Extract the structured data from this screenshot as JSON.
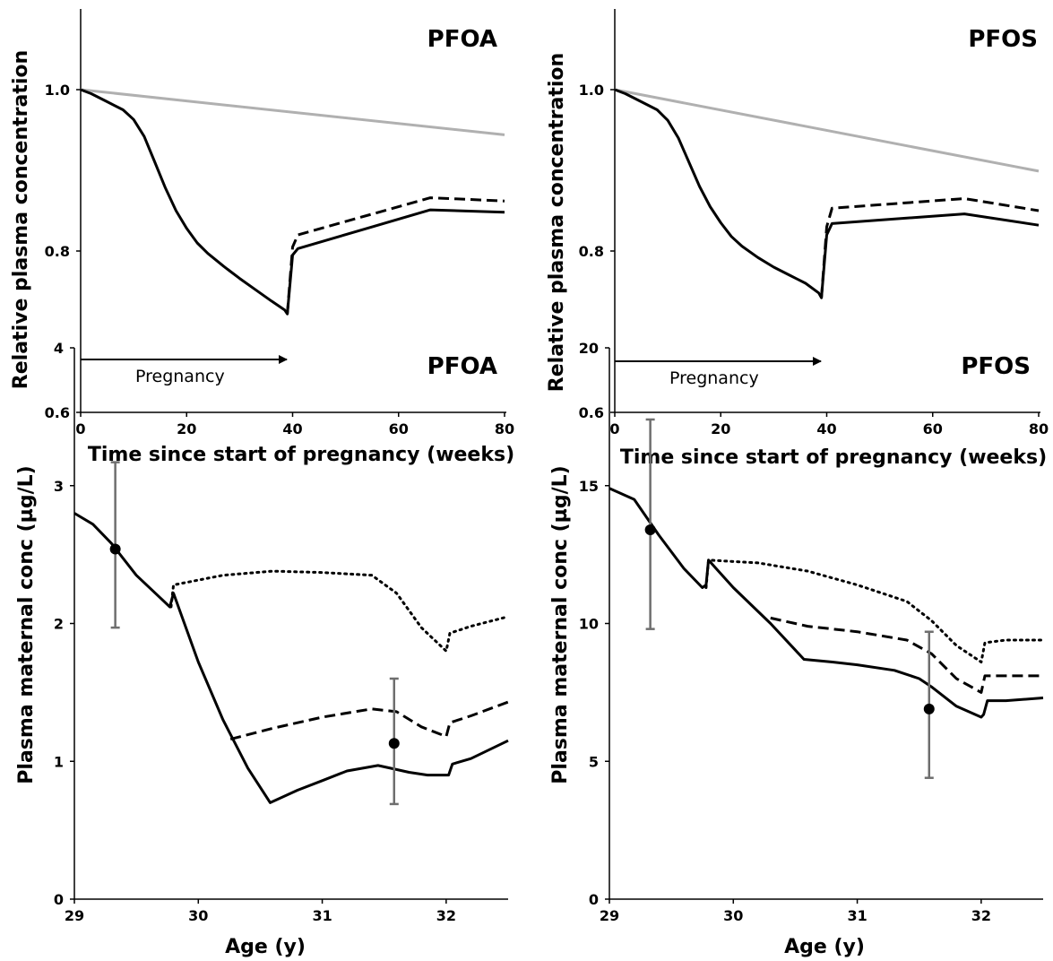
{
  "chart_data": [
    {
      "type": "line",
      "title": "PFOA",
      "xlabel": "Time since start of pregnancy (weeks)",
      "ylabel": "Relative plasma concentration",
      "xlim": [
        0,
        80
      ],
      "ylim": [
        0.6,
        1.1
      ],
      "xticks": [
        "0",
        "20",
        "40",
        "60",
        "80"
      ],
      "yticks": [
        "0.6",
        "0.8",
        "1.0"
      ],
      "annotation": "Pregnancy",
      "annotation_arrow": {
        "from": 0,
        "to": 39
      },
      "grid": false,
      "series": [
        {
          "style": "solid",
          "color": "#b0b0b0",
          "x": [
            0,
            80
          ],
          "y": [
            1.0,
            0.944
          ]
        },
        {
          "style": "dashed",
          "color": "#000000",
          "x": [
            39,
            40,
            41,
            66,
            80
          ],
          "y": [
            0.722,
            0.805,
            0.82,
            0.866,
            0.862
          ]
        },
        {
          "style": "solid",
          "color": "#000000",
          "x": [
            0,
            2,
            5,
            8,
            10,
            12,
            14,
            16,
            18,
            20,
            22,
            24,
            27,
            30,
            33,
            36,
            38.5,
            39,
            40,
            41,
            66,
            80
          ],
          "y": [
            1.0,
            0.995,
            0.985,
            0.975,
            0.963,
            0.942,
            0.91,
            0.878,
            0.85,
            0.828,
            0.81,
            0.797,
            0.781,
            0.766,
            0.752,
            0.738,
            0.727,
            0.722,
            0.795,
            0.803,
            0.851,
            0.848
          ]
        }
      ]
    },
    {
      "type": "line",
      "title": "PFOS",
      "xlabel": "Time since start of pregnancy (weeks)",
      "ylabel": "Relative plasma concentration",
      "xlim": [
        0,
        80
      ],
      "ylim": [
        0.6,
        1.1
      ],
      "xticks": [
        "0",
        "20",
        "40",
        "60",
        "80"
      ],
      "yticks": [
        "0.6",
        "0.8",
        "1.0"
      ],
      "annotation": "Pregnancy",
      "annotation_arrow": {
        "from": 0,
        "to": 39
      },
      "grid": false,
      "series": [
        {
          "style": "solid",
          "color": "#b0b0b0",
          "x": [
            0,
            80
          ],
          "y": [
            1.0,
            0.899
          ]
        },
        {
          "style": "dashed",
          "color": "#000000",
          "x": [
            39,
            40,
            41,
            66,
            80
          ],
          "y": [
            0.742,
            0.83,
            0.853,
            0.865,
            0.85
          ]
        },
        {
          "style": "solid",
          "color": "#000000",
          "x": [
            0,
            2,
            5,
            8,
            10,
            12,
            14,
            16,
            18,
            20,
            22,
            24,
            27,
            30,
            33,
            36,
            38.5,
            39,
            40,
            41,
            66,
            80
          ],
          "y": [
            1.0,
            0.995,
            0.985,
            0.975,
            0.962,
            0.94,
            0.91,
            0.88,
            0.855,
            0.835,
            0.818,
            0.806,
            0.792,
            0.78,
            0.77,
            0.76,
            0.748,
            0.742,
            0.82,
            0.834,
            0.846,
            0.832
          ]
        }
      ]
    },
    {
      "type": "line",
      "title": "PFOA",
      "xlabel": "Age (y)",
      "ylabel": "Plasma maternal conc (µg/L)",
      "xlim": [
        29,
        32.5
      ],
      "ylim": [
        0,
        4
      ],
      "xticks": [
        "29",
        "30",
        "31",
        "32"
      ],
      "yticks": [
        "0",
        "1",
        "2",
        "3",
        "4"
      ],
      "grid": false,
      "series": [
        {
          "style": "dotted",
          "color": "#000000",
          "x": [
            29.78,
            29.8,
            30.2,
            30.6,
            31.0,
            31.4,
            31.6,
            31.8,
            32.0,
            32.03,
            32.2,
            32.5
          ],
          "y": [
            2.12,
            2.28,
            2.35,
            2.38,
            2.37,
            2.35,
            2.22,
            1.97,
            1.8,
            1.93,
            1.98,
            2.05
          ]
        },
        {
          "style": "dashed",
          "color": "#000000",
          "x": [
            30.26,
            30.6,
            31.0,
            31.4,
            31.6,
            31.8,
            32.0,
            32.03,
            32.2,
            32.5
          ],
          "y": [
            1.16,
            1.24,
            1.32,
            1.38,
            1.36,
            1.25,
            1.18,
            1.28,
            1.33,
            1.43
          ]
        },
        {
          "style": "solid",
          "color": "#000000",
          "x": [
            29.0,
            29.15,
            29.3,
            29.5,
            29.7,
            29.77,
            29.8,
            30.0,
            30.2,
            30.4,
            30.58,
            30.8,
            31.0,
            31.2,
            31.45,
            31.55,
            31.7,
            31.85,
            32.02,
            32.05,
            32.2,
            32.5
          ],
          "y": [
            2.8,
            2.72,
            2.58,
            2.35,
            2.18,
            2.12,
            2.22,
            1.72,
            1.3,
            0.95,
            0.7,
            0.79,
            0.86,
            0.93,
            0.97,
            0.95,
            0.92,
            0.9,
            0.9,
            0.98,
            1.02,
            1.15
          ]
        },
        {
          "kind": "points_with_error",
          "x": [
            29.33,
            31.58
          ],
          "y": [
            2.54,
            1.13
          ],
          "yerr_low": [
            1.97,
            0.69
          ],
          "yerr_high": [
            3.17,
            1.6
          ]
        }
      ]
    },
    {
      "type": "line",
      "title": "PFOS",
      "xlabel": "Age (y)",
      "ylabel": "Plasma maternal conc (µg/L)",
      "xlim": [
        29,
        32.5
      ],
      "ylim": [
        0,
        20
      ],
      "xticks": [
        "29",
        "30",
        "31",
        "32"
      ],
      "yticks": [
        "0",
        "5",
        "10",
        "15",
        "20"
      ],
      "grid": false,
      "series": [
        {
          "style": "dotted",
          "color": "#000000",
          "x": [
            29.78,
            29.8,
            30.2,
            30.6,
            31.0,
            31.4,
            31.6,
            31.8,
            32.0,
            32.03,
            32.2,
            32.5
          ],
          "y": [
            11.3,
            12.3,
            12.2,
            11.9,
            11.4,
            10.8,
            10.1,
            9.2,
            8.6,
            9.3,
            9.4,
            9.4
          ]
        },
        {
          "style": "dashed",
          "color": "#000000",
          "x": [
            30.3,
            30.6,
            31.0,
            31.4,
            31.6,
            31.8,
            32.0,
            32.03,
            32.2,
            32.5
          ],
          "y": [
            10.2,
            9.9,
            9.7,
            9.4,
            8.9,
            8.0,
            7.5,
            8.1,
            8.1,
            8.1
          ]
        },
        {
          "style": "solid",
          "color": "#000000",
          "x": [
            29.0,
            29.2,
            29.4,
            29.6,
            29.75,
            29.78,
            29.8,
            30.0,
            30.3,
            30.57,
            30.8,
            31.0,
            31.3,
            31.5,
            31.6,
            31.8,
            32.0,
            32.02,
            32.05,
            32.2,
            32.5
          ],
          "y": [
            14.9,
            14.5,
            13.2,
            12.0,
            11.3,
            11.4,
            12.3,
            11.3,
            10.0,
            8.7,
            8.6,
            8.5,
            8.3,
            8.0,
            7.7,
            7.0,
            6.6,
            6.7,
            7.2,
            7.2,
            7.3
          ]
        },
        {
          "kind": "points_with_error",
          "x": [
            29.33,
            31.58
          ],
          "y": [
            13.4,
            6.9
          ],
          "yerr_low": [
            9.8,
            4.4
          ],
          "yerr_high": [
            17.4,
            9.7
          ]
        }
      ]
    }
  ]
}
